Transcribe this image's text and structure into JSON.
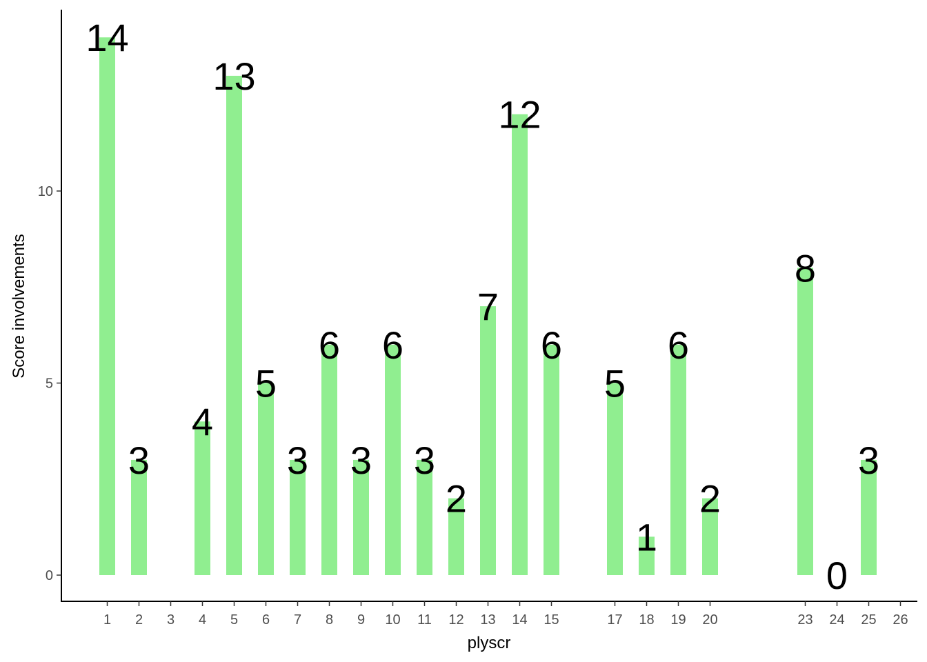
{
  "chart_data": {
    "type": "bar",
    "xlabel": "plyscr",
    "ylabel": "Score involvements",
    "x_ticks": [
      "1",
      "2",
      "3",
      "4",
      "5",
      "6",
      "7",
      "8",
      "9",
      "10",
      "11",
      "12",
      "13",
      "14",
      "15",
      "17",
      "18",
      "19",
      "20",
      "23",
      "24",
      "25",
      "26"
    ],
    "x_values": [
      1,
      2,
      4,
      5,
      6,
      7,
      8,
      9,
      10,
      11,
      12,
      13,
      14,
      15,
      17,
      18,
      19,
      20,
      23,
      24,
      25
    ],
    "values": [
      14,
      3,
      4,
      13,
      5,
      3,
      6,
      3,
      6,
      3,
      2,
      7,
      12,
      6,
      5,
      1,
      6,
      2,
      8,
      0,
      3
    ],
    "y_ticks": [
      0,
      5,
      10
    ],
    "xlim": [
      0,
      26.5
    ],
    "ylim": [
      -0.7,
      14.6
    ],
    "bar_color": "#90ee90",
    "grid": false,
    "legend": "none"
  }
}
